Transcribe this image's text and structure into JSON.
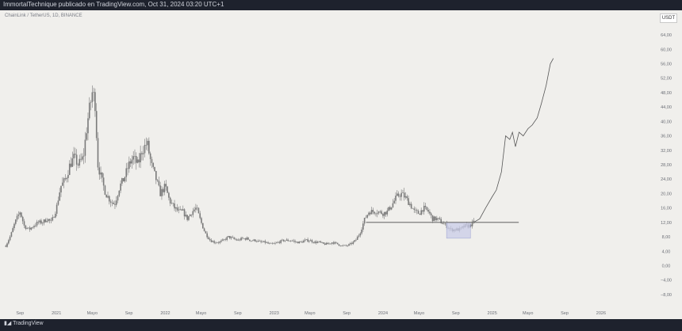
{
  "header": {
    "published_by": "ImmortalTechnique publicado en TradingView.com, Oct 31, 2024 03:20 UTC+1"
  },
  "symbol": {
    "label": "ChainLink / TetherUS, 1D, BINANCE",
    "currency_badge": "USDT"
  },
  "footer": {
    "logo_text": "TradingView"
  },
  "colors": {
    "page_bg": "#1e222d",
    "chart_bg": "#f0efec",
    "candles": "#7a7a7a",
    "line": "#555555",
    "support_line": "#6e6e6e",
    "zone": "#c9cce8"
  },
  "chart_data": {
    "type": "line",
    "title": "ChainLink / TetherUS, 1D, BINANCE",
    "xlabel": "",
    "ylabel": "",
    "x_ticks": [
      "Sep",
      "2021",
      "Mayo",
      "Sep",
      "2022",
      "Mayo",
      "Sep",
      "2023",
      "Mayo",
      "Sep",
      "2024",
      "Mayo",
      "Sep",
      "2025",
      "Mayo",
      "Sep",
      "2026"
    ],
    "y_ticks": [
      "64,00",
      "60,00",
      "56,00",
      "52,00",
      "48,00",
      "44,00",
      "40,00",
      "36,00",
      "32,00",
      "28,00",
      "24,00",
      "20,00",
      "16,00",
      "12,00",
      "8,00",
      "4,00",
      "0,00",
      "−4,00",
      "−8,00"
    ],
    "ylim": [
      -10,
      66
    ],
    "grid": false,
    "series": [
      {
        "style": "candles",
        "x": [
          "2020-07-15",
          "2020-08-01",
          "2020-08-15",
          "2020-09-01",
          "2020-09-15",
          "2020-10-01",
          "2020-10-15",
          "2020-11-01",
          "2020-11-15",
          "2020-12-01",
          "2020-12-15",
          "2021-01-01",
          "2021-01-15",
          "2021-02-01",
          "2021-02-15",
          "2021-03-01",
          "2021-03-15",
          "2021-04-01",
          "2021-04-15",
          "2021-05-01",
          "2021-05-10",
          "2021-05-20",
          "2021-06-01",
          "2021-06-15",
          "2021-07-01",
          "2021-07-15",
          "2021-08-01",
          "2021-08-15",
          "2021-09-01",
          "2021-09-15",
          "2021-10-01",
          "2021-10-15",
          "2021-11-01",
          "2021-11-15",
          "2021-12-01",
          "2021-12-15",
          "2022-01-01",
          "2022-01-15",
          "2022-02-01",
          "2022-02-15",
          "2022-03-01",
          "2022-03-15",
          "2022-04-01",
          "2022-04-15",
          "2022-05-01",
          "2022-05-15",
          "2022-06-01",
          "2022-06-15",
          "2022-07-01",
          "2022-07-15",
          "2022-08-01",
          "2022-08-15",
          "2022-09-01",
          "2022-09-15",
          "2022-10-01",
          "2022-10-15",
          "2022-11-01",
          "2022-11-15",
          "2022-12-01",
          "2022-12-15",
          "2023-01-01",
          "2023-01-15",
          "2023-02-01",
          "2023-02-15",
          "2023-03-01",
          "2023-03-15",
          "2023-04-01",
          "2023-04-15",
          "2023-05-01",
          "2023-05-15",
          "2023-06-01",
          "2023-06-15",
          "2023-07-01",
          "2023-07-15",
          "2023-08-01",
          "2023-08-15",
          "2023-09-01",
          "2023-09-15",
          "2023-10-01",
          "2023-10-15",
          "2023-11-01",
          "2023-11-15",
          "2023-12-01",
          "2023-12-15",
          "2024-01-01",
          "2024-01-15",
          "2024-02-01",
          "2024-02-15",
          "2024-03-01",
          "2024-03-15",
          "2024-04-01",
          "2024-04-15",
          "2024-05-01",
          "2024-05-15",
          "2024-06-01",
          "2024-06-15",
          "2024-07-01",
          "2024-07-15",
          "2024-08-01",
          "2024-08-15",
          "2024-09-01",
          "2024-09-15",
          "2024-10-01",
          "2024-10-15",
          "2024-10-31"
        ],
        "values": [
          5.5,
          8.5,
          12,
          15,
          11,
          10,
          11,
          12,
          12,
          13,
          12,
          16,
          22,
          24,
          28,
          30,
          28,
          30,
          40,
          48,
          46,
          28,
          24,
          20,
          18,
          17,
          22,
          24,
          28,
          30,
          28,
          32,
          34,
          28,
          24,
          20,
          22,
          18,
          16,
          15,
          15,
          13,
          15,
          16,
          12,
          9,
          7,
          6.5,
          6.5,
          7,
          8,
          7.5,
          7,
          7.5,
          7.5,
          7,
          7,
          6.5,
          6.5,
          6,
          6,
          6.5,
          7,
          7,
          7,
          6.5,
          6.5,
          7,
          7,
          6.5,
          6.5,
          6,
          6,
          6.5,
          6,
          5.5,
          5.5,
          6,
          7,
          9,
          13,
          15,
          15,
          15,
          14.5,
          15,
          17,
          19,
          20,
          19,
          17,
          15,
          14.5,
          16,
          15,
          13,
          13,
          12,
          11,
          10,
          10,
          10,
          11,
          11,
          12
        ]
      },
      {
        "style": "projection-line",
        "x": [
          "2024-10-31",
          "2024-11-20",
          "2024-12-10",
          "2024-12-31",
          "2025-01-15",
          "2025-02-01",
          "2025-02-15",
          "2025-03-01",
          "2025-03-10",
          "2025-03-20",
          "2025-04-01",
          "2025-04-15",
          "2025-05-01",
          "2025-05-15",
          "2025-06-01",
          "2025-06-15",
          "2025-07-01",
          "2025-07-15",
          "2025-07-25"
        ],
        "values": [
          12,
          13,
          16,
          19,
          21,
          26,
          36,
          35,
          37,
          33,
          37,
          36,
          38,
          39,
          41,
          45,
          50,
          56,
          57.5
        ]
      }
    ],
    "support_level": {
      "value": 12,
      "x_start": "2023-11-05",
      "x_end": "2025-03-31"
    },
    "zone": {
      "x_start": "2024-08-01",
      "x_end": "2024-10-20",
      "y_min": 7.6,
      "y_max": 12
    }
  }
}
